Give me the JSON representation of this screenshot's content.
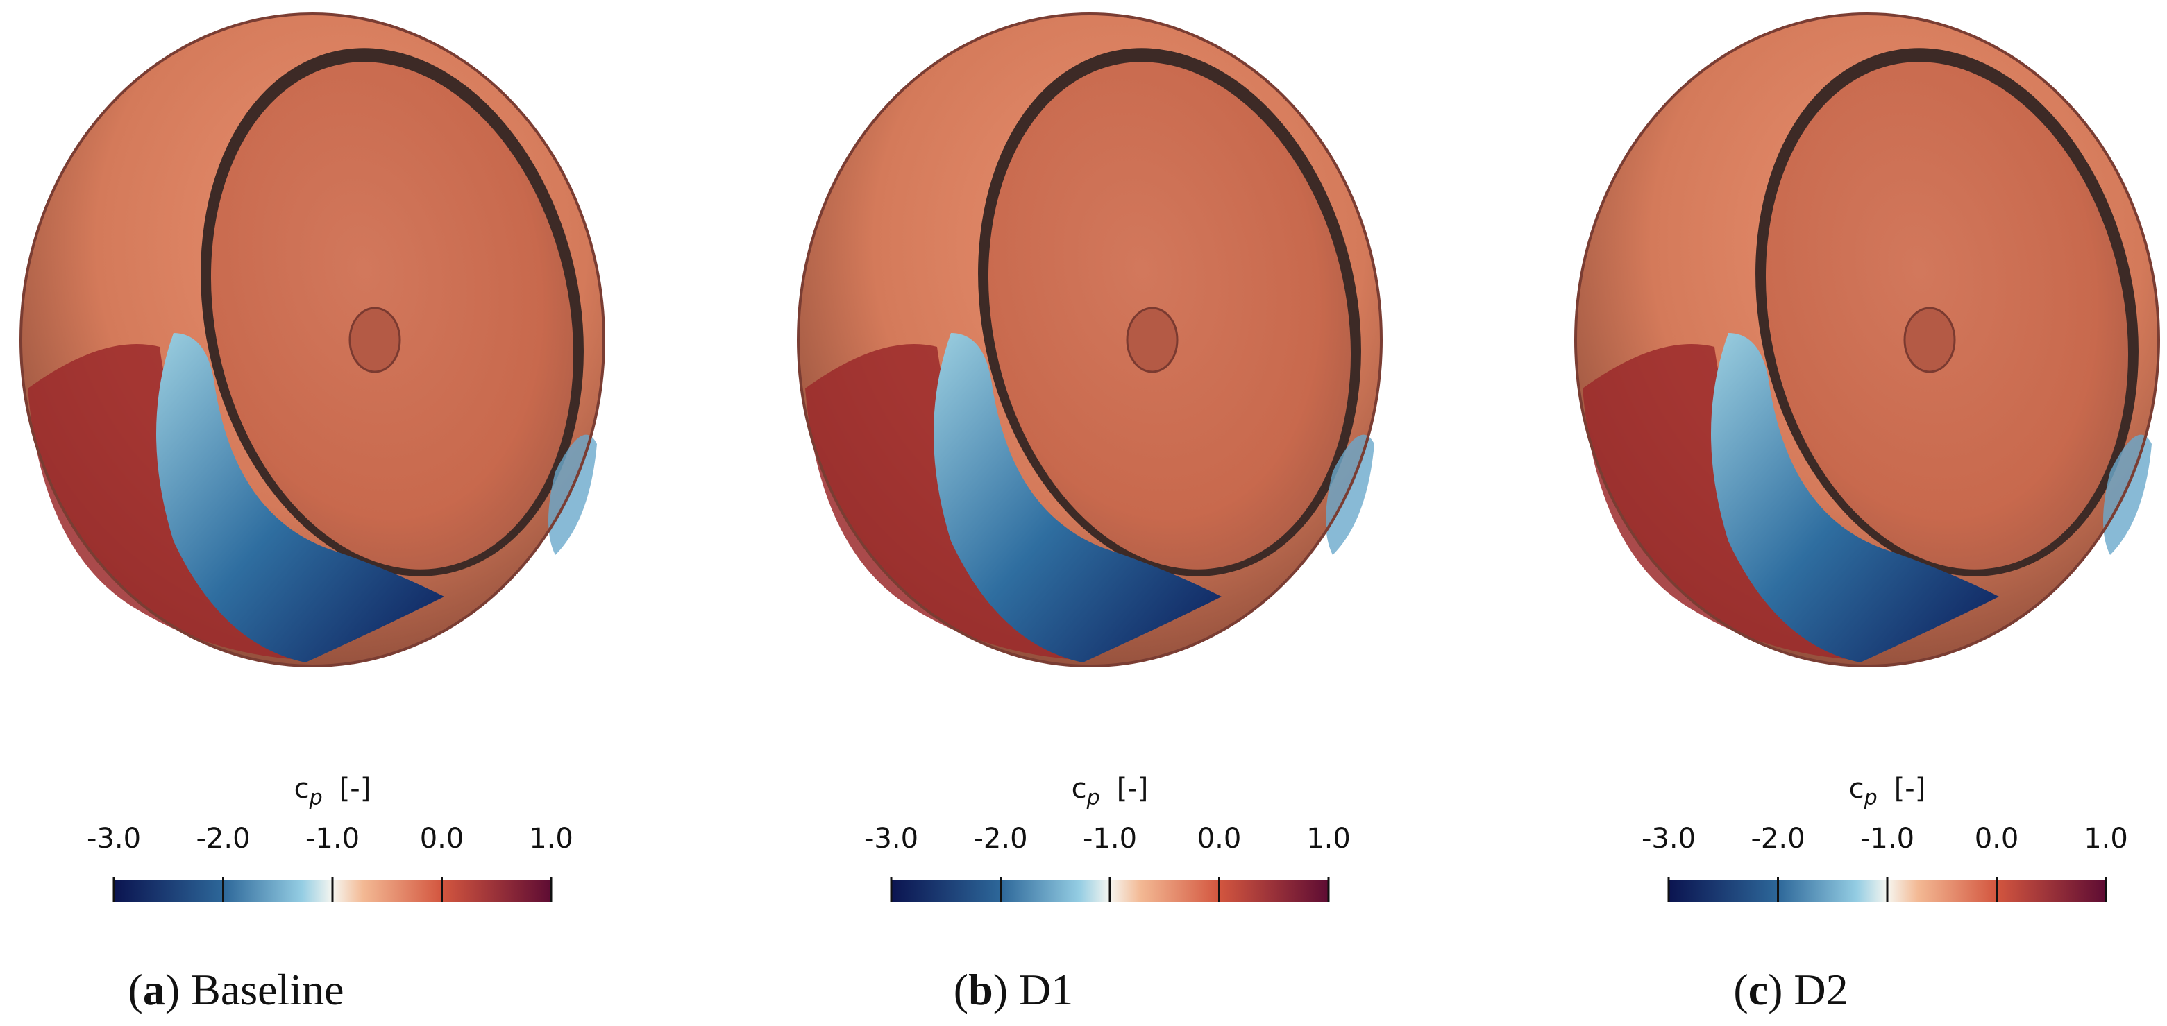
{
  "panels": [
    {
      "caption_parts": [
        "(",
        "a",
        ") Baseline"
      ],
      "colorbar": {
        "title": "c",
        "title_sub": "p",
        "unit": "[-]",
        "range": [
          -3,
          1
        ],
        "ticks": [
          {
            "value": -3,
            "label": "-3.0"
          },
          {
            "value": -2,
            "label": "-2.0"
          },
          {
            "value": -1,
            "label": "-1.0"
          },
          {
            "value": 0,
            "label": "0.0"
          },
          {
            "value": 1,
            "label": "1.0"
          }
        ]
      }
    },
    {
      "caption_parts": [
        "(",
        "b",
        ") D1"
      ],
      "colorbar": {
        "title": "c",
        "title_sub": "p",
        "unit": "[-]",
        "range": [
          -3,
          1
        ],
        "ticks": [
          {
            "value": -3,
            "label": "-3.0"
          },
          {
            "value": -2,
            "label": "-2.0"
          },
          {
            "value": -1,
            "label": "-1.0"
          },
          {
            "value": 0,
            "label": "0.0"
          },
          {
            "value": 1,
            "label": "1.0"
          }
        ]
      }
    },
    {
      "caption_parts": [
        "(",
        "c",
        ") D2"
      ],
      "colorbar": {
        "title": "c",
        "title_sub": "p",
        "unit": "[-]",
        "range": [
          -3,
          1
        ],
        "ticks": [
          {
            "value": -3,
            "label": "-3.0"
          },
          {
            "value": -2,
            "label": "-2.0"
          },
          {
            "value": -1,
            "label": "-1.0"
          },
          {
            "value": 0,
            "label": "0.0"
          },
          {
            "value": 1,
            "label": "1.0"
          }
        ]
      }
    }
  ]
}
